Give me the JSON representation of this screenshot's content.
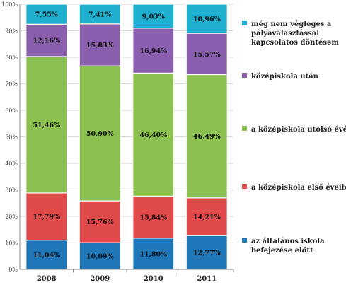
{
  "chart_data": {
    "type": "bar",
    "stacked": true,
    "categories": [
      "2008",
      "2009",
      "2010",
      "2011"
    ],
    "ylim": [
      0,
      100
    ],
    "yticks": [
      "0%",
      "10%",
      "20%",
      "30%",
      "40%",
      "50%",
      "60%",
      "70%",
      "80%",
      "90%",
      "100%"
    ],
    "grid": true,
    "legend_position": "right",
    "series": [
      {
        "name": "az általános iskola befejezése előtt",
        "legend_lines": [
          "az általános iskola",
          "befejezése előtt"
        ],
        "color": "#1f77b8",
        "values": [
          11.04,
          10.09,
          11.8,
          12.77
        ],
        "labels": [
          "11,04%",
          "10,09%",
          "11,80%",
          "12,77%"
        ]
      },
      {
        "name": "a középiskola első éveiben",
        "legend_lines": [
          "a középiskola első éveiben"
        ],
        "color": "#e04a4a",
        "values": [
          17.79,
          15.76,
          15.84,
          14.21
        ],
        "labels": [
          "17,79%",
          "15,76%",
          "15,84%",
          "14,21%"
        ]
      },
      {
        "name": "a középiskola utolsó évében",
        "legend_lines": [
          "a középiskola utolsó évében"
        ],
        "color": "#8cc152",
        "values": [
          51.46,
          50.9,
          46.4,
          46.49
        ],
        "labels": [
          "51,46%",
          "50,90%",
          "46,40%",
          "46,49%"
        ]
      },
      {
        "name": "középiskola után",
        "legend_lines": [
          "középiskola után"
        ],
        "color": "#8a5fad",
        "values": [
          12.16,
          15.83,
          16.94,
          15.57
        ],
        "labels": [
          "12,16%",
          "15,83%",
          "16,94%",
          "15,57%"
        ]
      },
      {
        "name": "még nem végleges a pályaválasztással kapcsolatos döntésem",
        "legend_lines": [
          "még nem végleges a",
          "pályaválasztással",
          "kapcsolatos döntésem"
        ],
        "color": "#1fb0d0",
        "values": [
          7.55,
          7.41,
          9.03,
          10.96
        ],
        "labels": [
          "7,55%",
          "7,41%",
          "9,03%",
          "10,96%"
        ]
      }
    ]
  }
}
